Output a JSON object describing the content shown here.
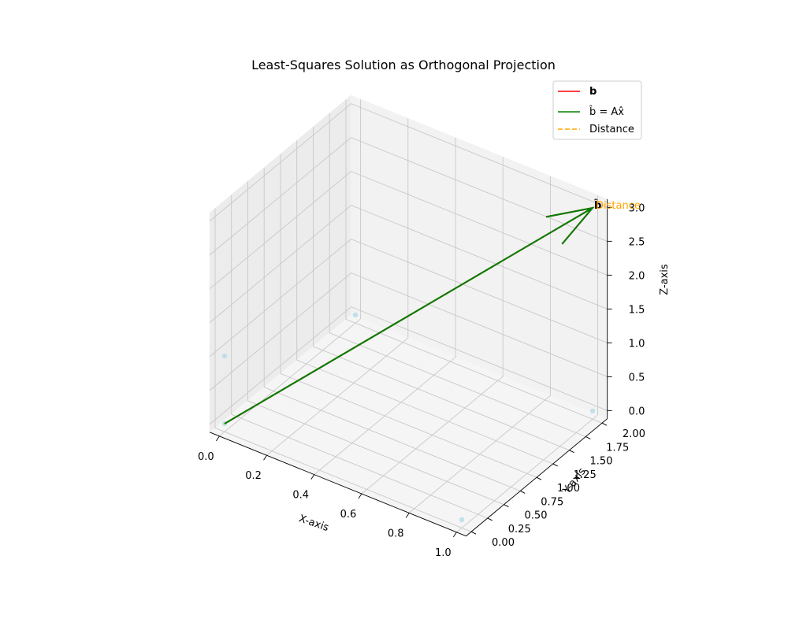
{
  "chart_data": {
    "type": "scatter",
    "projection": "3d",
    "title": "Least-Squares Solution as Orthogonal Projection",
    "xlabel": "X-axis",
    "ylabel": "Y-axis",
    "zlabel": "Z-axis",
    "xlim": [
      0,
      1
    ],
    "ylim": [
      0,
      2
    ],
    "zlim": [
      0,
      3
    ],
    "x_ticks": [
      "0.0",
      "0.2",
      "0.4",
      "0.6",
      "0.8",
      "1.0"
    ],
    "y_ticks": [
      "0.00",
      "0.25",
      "0.50",
      "0.75",
      "1.00",
      "1.25",
      "1.50",
      "1.75",
      "2.00"
    ],
    "z_ticks": [
      "0.0",
      "0.5",
      "1.0",
      "1.5",
      "2.0",
      "2.5",
      "3.0"
    ],
    "grid": true,
    "legend": {
      "placement": "top-right",
      "entries": [
        {
          "label": "b",
          "color": "#ff0000",
          "style": "solid"
        },
        {
          "label": "b̂ = Ax̂",
          "color": "#008000",
          "style": "solid"
        },
        {
          "label": "Distance",
          "color": "#ffa500",
          "style": "dashed"
        }
      ]
    },
    "points": [
      {
        "x": 0,
        "y": 0,
        "z": 0
      },
      {
        "x": 1,
        "y": 0,
        "z": 0
      },
      {
        "x": 0,
        "y": 2,
        "z": 0
      },
      {
        "x": 0,
        "y": 0,
        "z": 1
      },
      {
        "x": 1,
        "y": 2,
        "z": 0
      }
    ],
    "point_color": "#add8e6",
    "vectors": [
      {
        "name": "b",
        "from": [
          0,
          0,
          0
        ],
        "to": [
          1,
          2,
          3
        ],
        "color": "#ff0000",
        "label": "b"
      },
      {
        "name": "b_hat",
        "from": [
          0,
          0,
          0
        ],
        "to": [
          1,
          2,
          3
        ],
        "color": "#008000",
        "label": "b̂"
      }
    ],
    "distance": {
      "from": [
        1,
        2,
        3
      ],
      "to": [
        1,
        2,
        3
      ],
      "color": "#ffa500",
      "label": "Distance"
    }
  }
}
